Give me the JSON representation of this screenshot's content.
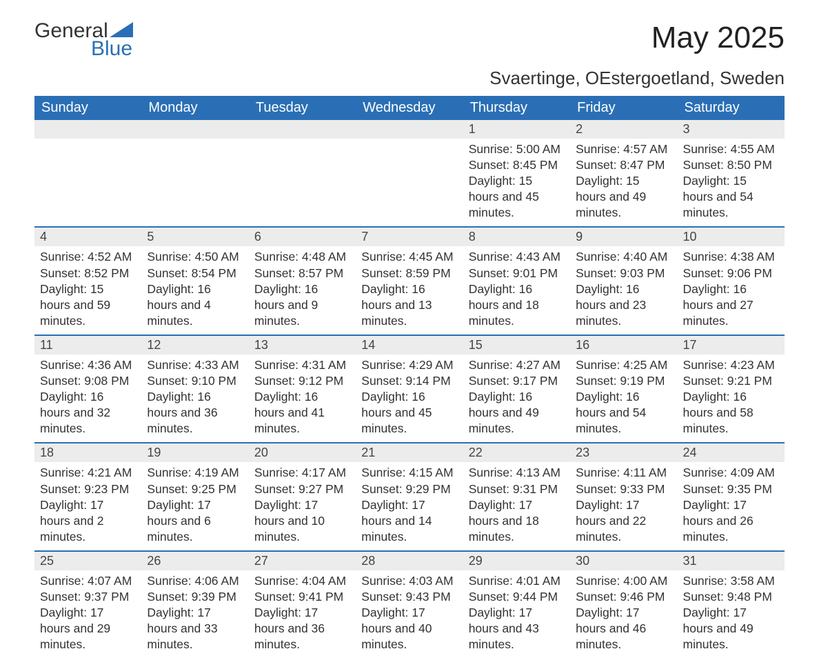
{
  "logo": {
    "word1": "General",
    "word2": "Blue",
    "accent_color": "#2a6fb5"
  },
  "header": {
    "month_title": "May 2025",
    "location": "Svaertinge, OEstergoetland, Sweden"
  },
  "calendar": {
    "header_bg": "#2a6fb5",
    "header_fg": "#ffffff",
    "daynum_bg": "#ececec",
    "rule_color": "#2a6fb5",
    "text_color": "#333333",
    "day_headers": [
      "Sunday",
      "Monday",
      "Tuesday",
      "Wednesday",
      "Thursday",
      "Friday",
      "Saturday"
    ],
    "weeks": [
      [
        null,
        null,
        null,
        null,
        {
          "n": "1",
          "sunrise": "5:00 AM",
          "sunset": "8:45 PM",
          "daylight": "15 hours and 45 minutes."
        },
        {
          "n": "2",
          "sunrise": "4:57 AM",
          "sunset": "8:47 PM",
          "daylight": "15 hours and 49 minutes."
        },
        {
          "n": "3",
          "sunrise": "4:55 AM",
          "sunset": "8:50 PM",
          "daylight": "15 hours and 54 minutes."
        }
      ],
      [
        {
          "n": "4",
          "sunrise": "4:52 AM",
          "sunset": "8:52 PM",
          "daylight": "15 hours and 59 minutes."
        },
        {
          "n": "5",
          "sunrise": "4:50 AM",
          "sunset": "8:54 PM",
          "daylight": "16 hours and 4 minutes."
        },
        {
          "n": "6",
          "sunrise": "4:48 AM",
          "sunset": "8:57 PM",
          "daylight": "16 hours and 9 minutes."
        },
        {
          "n": "7",
          "sunrise": "4:45 AM",
          "sunset": "8:59 PM",
          "daylight": "16 hours and 13 minutes."
        },
        {
          "n": "8",
          "sunrise": "4:43 AM",
          "sunset": "9:01 PM",
          "daylight": "16 hours and 18 minutes."
        },
        {
          "n": "9",
          "sunrise": "4:40 AM",
          "sunset": "9:03 PM",
          "daylight": "16 hours and 23 minutes."
        },
        {
          "n": "10",
          "sunrise": "4:38 AM",
          "sunset": "9:06 PM",
          "daylight": "16 hours and 27 minutes."
        }
      ],
      [
        {
          "n": "11",
          "sunrise": "4:36 AM",
          "sunset": "9:08 PM",
          "daylight": "16 hours and 32 minutes."
        },
        {
          "n": "12",
          "sunrise": "4:33 AM",
          "sunset": "9:10 PM",
          "daylight": "16 hours and 36 minutes."
        },
        {
          "n": "13",
          "sunrise": "4:31 AM",
          "sunset": "9:12 PM",
          "daylight": "16 hours and 41 minutes."
        },
        {
          "n": "14",
          "sunrise": "4:29 AM",
          "sunset": "9:14 PM",
          "daylight": "16 hours and 45 minutes."
        },
        {
          "n": "15",
          "sunrise": "4:27 AM",
          "sunset": "9:17 PM",
          "daylight": "16 hours and 49 minutes."
        },
        {
          "n": "16",
          "sunrise": "4:25 AM",
          "sunset": "9:19 PM",
          "daylight": "16 hours and 54 minutes."
        },
        {
          "n": "17",
          "sunrise": "4:23 AM",
          "sunset": "9:21 PM",
          "daylight": "16 hours and 58 minutes."
        }
      ],
      [
        {
          "n": "18",
          "sunrise": "4:21 AM",
          "sunset": "9:23 PM",
          "daylight": "17 hours and 2 minutes."
        },
        {
          "n": "19",
          "sunrise": "4:19 AM",
          "sunset": "9:25 PM",
          "daylight": "17 hours and 6 minutes."
        },
        {
          "n": "20",
          "sunrise": "4:17 AM",
          "sunset": "9:27 PM",
          "daylight": "17 hours and 10 minutes."
        },
        {
          "n": "21",
          "sunrise": "4:15 AM",
          "sunset": "9:29 PM",
          "daylight": "17 hours and 14 minutes."
        },
        {
          "n": "22",
          "sunrise": "4:13 AM",
          "sunset": "9:31 PM",
          "daylight": "17 hours and 18 minutes."
        },
        {
          "n": "23",
          "sunrise": "4:11 AM",
          "sunset": "9:33 PM",
          "daylight": "17 hours and 22 minutes."
        },
        {
          "n": "24",
          "sunrise": "4:09 AM",
          "sunset": "9:35 PM",
          "daylight": "17 hours and 26 minutes."
        }
      ],
      [
        {
          "n": "25",
          "sunrise": "4:07 AM",
          "sunset": "9:37 PM",
          "daylight": "17 hours and 29 minutes."
        },
        {
          "n": "26",
          "sunrise": "4:06 AM",
          "sunset": "9:39 PM",
          "daylight": "17 hours and 33 minutes."
        },
        {
          "n": "27",
          "sunrise": "4:04 AM",
          "sunset": "9:41 PM",
          "daylight": "17 hours and 36 minutes."
        },
        {
          "n": "28",
          "sunrise": "4:03 AM",
          "sunset": "9:43 PM",
          "daylight": "17 hours and 40 minutes."
        },
        {
          "n": "29",
          "sunrise": "4:01 AM",
          "sunset": "9:44 PM",
          "daylight": "17 hours and 43 minutes."
        },
        {
          "n": "30",
          "sunrise": "4:00 AM",
          "sunset": "9:46 PM",
          "daylight": "17 hours and 46 minutes."
        },
        {
          "n": "31",
          "sunrise": "3:58 AM",
          "sunset": "9:48 PM",
          "daylight": "17 hours and 49 minutes."
        }
      ]
    ],
    "labels": {
      "sunrise": "Sunrise:",
      "sunset": "Sunset:",
      "daylight": "Daylight:"
    }
  }
}
